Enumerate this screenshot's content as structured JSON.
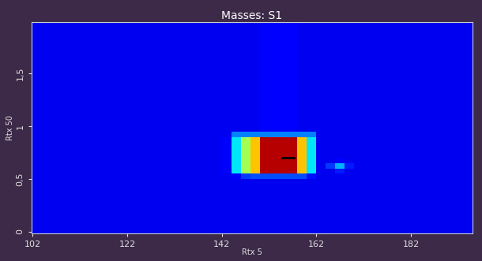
{
  "chart_data": {
    "type": "heatmap",
    "title": "Masses: S1",
    "x_label": "Rtx 5",
    "y_label": "Rtx 50",
    "xlim": [
      101.7,
      195
    ],
    "ylim": [
      -0.02,
      1.99
    ],
    "xticks": [
      102,
      122,
      142,
      162,
      182
    ],
    "yticks": [
      0,
      {
        "value": 0.5,
        "label": "0,5"
      },
      1,
      {
        "value": 1.5,
        "label": "1,5"
      }
    ],
    "x_edges": [
      101.7,
      140,
      142,
      144,
      146,
      148,
      150,
      152,
      154,
      156,
      158,
      160,
      162,
      164,
      166,
      168,
      170,
      195
    ],
    "y_edges": [
      -0.02,
      0.5,
      0.55,
      0.6,
      0.65,
      0.7,
      0.75,
      0.8,
      0.85,
      0.9,
      0.95,
      1.99
    ],
    "cells": [
      [
        10,
        10,
        10,
        10,
        10,
        10,
        10,
        10,
        10,
        10,
        10,
        10,
        10,
        10,
        10,
        10,
        10
      ],
      [
        10,
        10,
        10,
        12,
        18,
        20,
        20,
        20,
        20,
        20,
        20,
        14,
        10,
        10,
        10,
        10,
        10
      ],
      [
        10,
        10,
        12,
        35,
        55,
        70,
        95,
        95,
        95,
        95,
        70,
        35,
        10,
        10,
        15,
        10,
        10
      ],
      [
        10,
        10,
        12,
        35,
        55,
        70,
        95,
        95,
        95,
        95,
        70,
        35,
        10,
        18,
        30,
        15,
        10
      ],
      [
        10,
        10,
        12,
        35,
        55,
        70,
        95,
        95,
        95,
        95,
        70,
        35,
        10,
        10,
        12,
        10,
        10
      ],
      [
        10,
        10,
        12,
        35,
        55,
        70,
        95,
        95,
        95,
        95,
        70,
        35,
        10,
        10,
        10,
        10,
        10
      ],
      [
        10,
        10,
        12,
        35,
        55,
        70,
        95,
        95,
        95,
        95,
        70,
        35,
        10,
        10,
        10,
        10,
        10
      ],
      [
        10,
        10,
        12,
        35,
        55,
        70,
        95,
        95,
        95,
        95,
        70,
        35,
        10,
        10,
        10,
        10,
        10
      ],
      [
        10,
        10,
        12,
        35,
        55,
        70,
        95,
        95,
        95,
        95,
        70,
        35,
        10,
        10,
        10,
        10,
        10
      ],
      [
        10,
        10,
        10,
        25,
        25,
        25,
        25,
        25,
        25,
        25,
        25,
        25,
        10,
        10,
        10,
        10,
        10
      ],
      [
        10,
        10,
        10,
        10,
        10,
        10,
        12,
        12,
        12,
        12,
        10,
        10,
        10,
        10,
        10,
        10,
        10
      ]
    ],
    "color_range": [
      0,
      100
    ],
    "cursor": {
      "x": [
        154.8,
        157.3
      ],
      "y": 0.7
    }
  }
}
